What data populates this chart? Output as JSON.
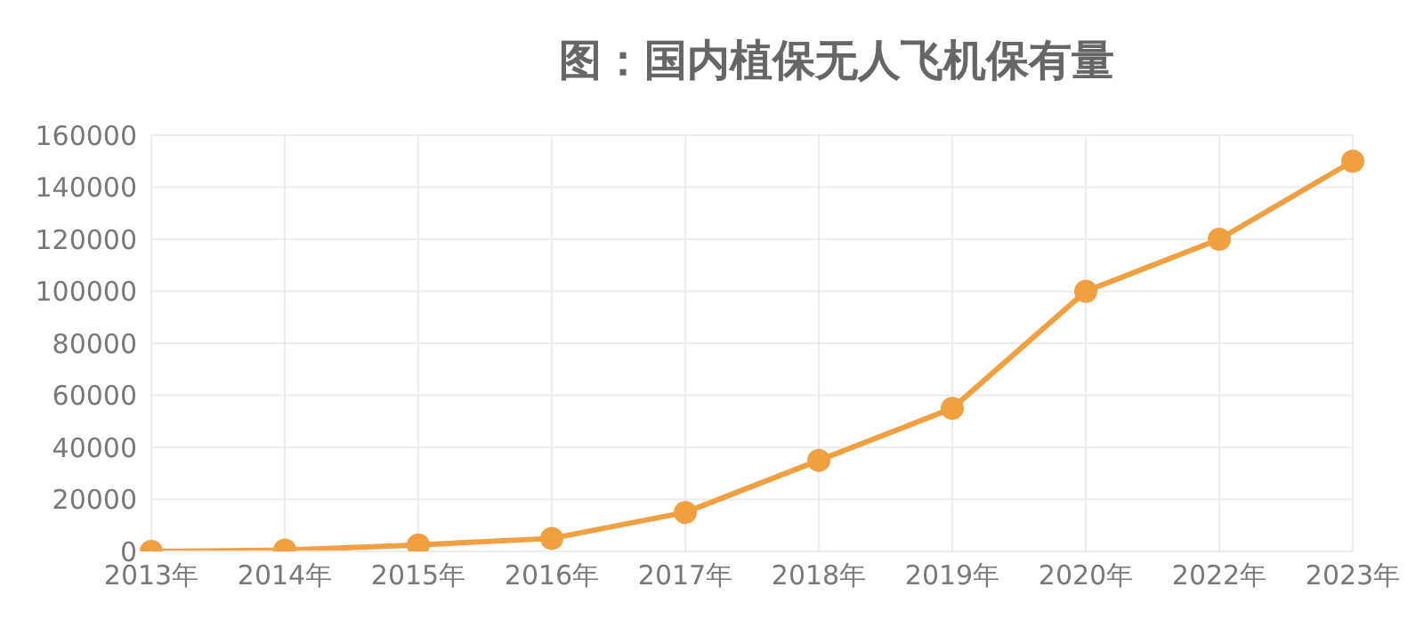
{
  "chart_data": {
    "type": "line",
    "title": "图：国内植保无人飞机保有量",
    "categories": [
      "2013年",
      "2014年",
      "2015年",
      "2016年",
      "2017年",
      "2018年",
      "2019年",
      "2020年",
      "2022年",
      "2023年"
    ],
    "series": [
      {
        "color": "#f0a040",
        "values": [
          0,
          500,
          2500,
          5000,
          15000,
          35000,
          55000,
          100000,
          120000,
          150000
        ]
      }
    ],
    "ylim": [
      0,
      160000
    ],
    "yticks": [
      0,
      20000,
      40000,
      60000,
      80000,
      100000,
      120000,
      140000,
      160000
    ],
    "grid": true,
    "marker": "circle",
    "line_style": "solid",
    "legend": false
  }
}
